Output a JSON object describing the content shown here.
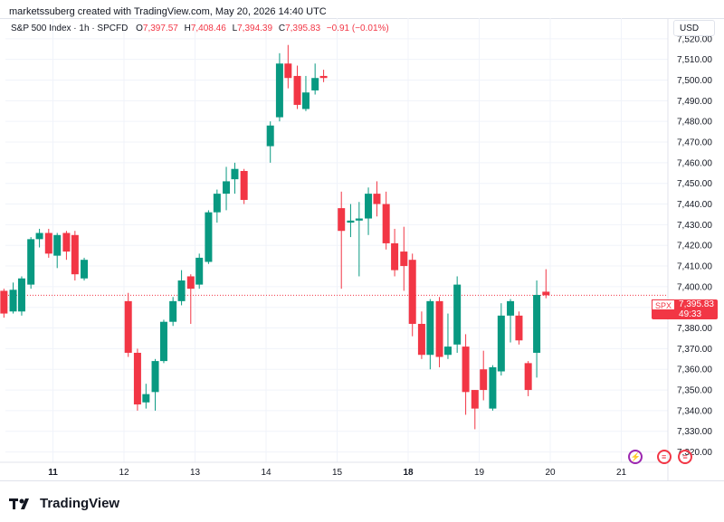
{
  "header": {
    "credit": "marketssuberg created with TradingView.com, May 20, 2026 14:40 UTC"
  },
  "legend": {
    "name": "S&P 500 Index · 1h · SPCFD",
    "o_label": "O",
    "o_value": "7,397.57",
    "h_label": "H",
    "h_value": "7,408.46",
    "l_label": "L",
    "l_value": "7,394.39",
    "c_label": "C",
    "c_value": "7,395.83",
    "change": "−0.91 (−0.01%)"
  },
  "axis": {
    "currency": "USD"
  },
  "price_tag": {
    "symbol": "SPX",
    "price": "7,395.83",
    "countdown": "49:33"
  },
  "colors": {
    "up": "#089981",
    "down": "#f23645",
    "grid": "#f0f3fa",
    "text": "#131722"
  },
  "events": [
    {
      "icon": "lightning-icon",
      "color": "#9c27b0",
      "day_index": 11.2
    },
    {
      "icon": "us-flag-icon",
      "color": "#f23645",
      "day_index": 11.6
    },
    {
      "icon": "us-flag-icon",
      "color": "#f23645",
      "day_index": 11.9
    }
  ],
  "footer": {
    "brand": "TradingView"
  },
  "chart_data": {
    "type": "candlestick",
    "title": "S&P 500 Index · 1h · SPCFD",
    "x_ticks": [
      {
        "label": "11",
        "bold": true,
        "pos": 1
      },
      {
        "label": "12",
        "bold": false,
        "pos": 2
      },
      {
        "label": "13",
        "bold": false,
        "pos": 3
      },
      {
        "label": "14",
        "bold": false,
        "pos": 4
      },
      {
        "label": "15",
        "bold": false,
        "pos": 5
      },
      {
        "label": "18",
        "bold": true,
        "pos": 6
      },
      {
        "label": "19",
        "bold": false,
        "pos": 7
      },
      {
        "label": "20",
        "bold": false,
        "pos": 8
      },
      {
        "label": "21",
        "bold": false,
        "pos": 9
      }
    ],
    "y_ticks": [
      "7,320.00",
      "7,330.00",
      "7,340.00",
      "7,350.00",
      "7,360.00",
      "7,370.00",
      "7,380.00",
      "7,390.00",
      "7,400.00",
      "7,410.00",
      "7,420.00",
      "7,430.00",
      "7,440.00",
      "7,450.00",
      "7,460.00",
      "7,470.00",
      "7,480.00",
      "7,490.00",
      "7,500.00",
      "7,510.00",
      "7,520.00"
    ],
    "y_tick_values": [
      7320,
      7330,
      7340,
      7350,
      7360,
      7370,
      7380,
      7390,
      7400,
      7410,
      7420,
      7430,
      7440,
      7450,
      7460,
      7470,
      7480,
      7490,
      7500,
      7510,
      7520
    ],
    "ylim": [
      7315,
      7530
    ],
    "last_price": 7395.83,
    "candles": [
      [
        0.06,
        7398.5,
        7399.5,
        7391,
        7400.5
      ],
      [
        0.19,
        7399.5,
        7396,
        7393,
        7400.5
      ],
      [
        0.31,
        7398,
        7387,
        7385,
        7399
      ],
      [
        0.44,
        7388,
        7398.5,
        7387,
        7402
      ],
      [
        0.56,
        7388,
        7404,
        7386,
        7405
      ],
      [
        0.69,
        7401,
        7423,
        7399,
        7424
      ],
      [
        0.81,
        7423,
        7426,
        7419,
        7428
      ],
      [
        0.94,
        7426,
        7416,
        7414,
        7428
      ],
      [
        1.06,
        7415,
        7425,
        7409,
        7426
      ],
      [
        1.19,
        7426,
        7417,
        7413,
        7427
      ],
      [
        1.31,
        7425,
        7406,
        7403,
        7427
      ],
      [
        1.44,
        7404,
        7413,
        7403,
        7414
      ],
      [
        2.06,
        7393,
        7368,
        7366,
        7397
      ],
      [
        2.19,
        7368,
        7343,
        7340,
        7370
      ],
      [
        2.31,
        7344,
        7348,
        7341,
        7353
      ],
      [
        2.44,
        7349,
        7364,
        7340,
        7365
      ],
      [
        2.56,
        7364,
        7383,
        7363,
        7384
      ],
      [
        2.69,
        7383,
        7393,
        7381,
        7395
      ],
      [
        2.81,
        7393,
        7403,
        7391,
        7408
      ],
      [
        2.94,
        7405,
        7399,
        7382,
        7406
      ],
      [
        3.06,
        7401,
        7414,
        7399,
        7416
      ],
      [
        3.19,
        7412,
        7436,
        7411,
        7437
      ],
      [
        3.31,
        7436,
        7445,
        7431,
        7447
      ],
      [
        3.44,
        7445,
        7451,
        7437,
        7458
      ],
      [
        3.56,
        7452,
        7457,
        7445,
        7460
      ],
      [
        3.69,
        7456,
        7442,
        7440,
        7457
      ],
      [
        4.06,
        7468,
        7478,
        7460,
        7480
      ],
      [
        4.19,
        7482,
        7508,
        7480,
        7513
      ],
      [
        4.31,
        7508,
        7501,
        7496,
        7517
      ],
      [
        4.44,
        7502,
        7488,
        7486,
        7507
      ],
      [
        4.56,
        7486,
        7494,
        7485,
        7502
      ],
      [
        4.69,
        7495,
        7501,
        7493,
        7508
      ],
      [
        4.81,
        7502,
        7501,
        7499,
        7505
      ],
      [
        5.06,
        7438,
        7427,
        7399,
        7446
      ],
      [
        5.19,
        7431,
        7432,
        7424,
        7440
      ],
      [
        5.31,
        7432,
        7433,
        7405,
        7441
      ],
      [
        5.44,
        7433,
        7445,
        7425,
        7448
      ],
      [
        5.56,
        7445,
        7440,
        7434,
        7451
      ],
      [
        5.69,
        7440,
        7421,
        7418,
        7446
      ],
      [
        5.81,
        7421,
        7408,
        7405,
        7428
      ],
      [
        5.94,
        7417,
        7410,
        7398,
        7429
      ],
      [
        6.06,
        7413,
        7382,
        7376,
        7416
      ],
      [
        6.19,
        7382,
        7367,
        7365,
        7388
      ],
      [
        6.31,
        7367,
        7393,
        7360,
        7394
      ],
      [
        6.44,
        7393,
        7366,
        7361,
        7395
      ],
      [
        6.56,
        7367,
        7371,
        7365,
        7387
      ],
      [
        6.69,
        7372,
        7401,
        7368,
        7405
      ],
      [
        6.81,
        7371,
        7349,
        7338,
        7377
      ],
      [
        6.94,
        7350,
        7341,
        7331,
        7350
      ],
      [
        7.06,
        7360,
        7350,
        7345,
        7369
      ],
      [
        7.19,
        7341,
        7361,
        7340,
        7362
      ],
      [
        7.31,
        7359,
        7386,
        7357,
        7392
      ],
      [
        7.44,
        7386,
        7393,
        7373,
        7394
      ],
      [
        7.56,
        7386,
        7374,
        7372,
        7388
      ],
      [
        7.69,
        7363,
        7350,
        7347,
        7364
      ],
      [
        7.81,
        7368,
        7396,
        7356,
        7403
      ],
      [
        7.94,
        7397.57,
        7395.83,
        7394.39,
        7408.46
      ]
    ]
  }
}
